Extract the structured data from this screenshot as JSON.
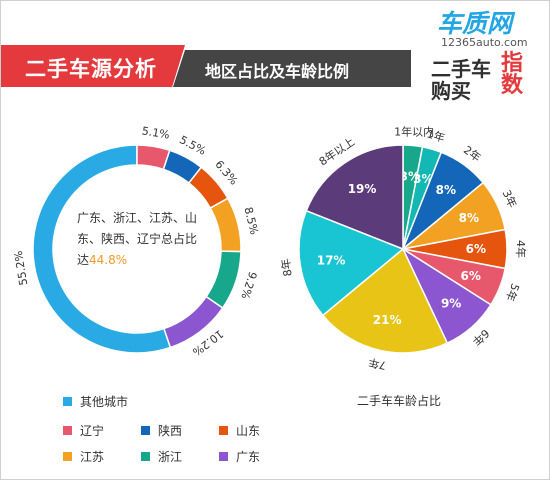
{
  "header": {
    "main_title": "二手车源分析",
    "sub_title": "地区占比及车龄比例",
    "logo_top": "车质网",
    "logo_url": "12365auto.com",
    "logo_line1": "二手车",
    "logo_line2": "购买",
    "logo_accent": "指数"
  },
  "donut": {
    "center_text_line1": "广东、浙江、江苏、山",
    "center_text_line2": "东、陕西、辽宁总占比",
    "center_text_line3_prefix": "达",
    "center_text_highlight": "44.8%",
    "highlight_color": "#f29a2a"
  },
  "pie_caption": "二手车车龄占比",
  "legend": [
    {
      "label": "其他城市",
      "color": "#2aaae4"
    },
    {
      "label": "辽宁",
      "color": "#e8586d"
    },
    {
      "label": "陕西",
      "color": "#1466b8"
    },
    {
      "label": "山东",
      "color": "#e5550e"
    },
    {
      "label": "江苏",
      "color": "#f3a122"
    },
    {
      "label": "浙江",
      "color": "#17a78a"
    },
    {
      "label": "广东",
      "color": "#8b56cf"
    }
  ],
  "chart_data": [
    {
      "type": "pie",
      "title": "地区占比",
      "donut": true,
      "categories": [
        "其他城市",
        "辽宁",
        "陕西",
        "山东",
        "江苏",
        "浙江",
        "广东"
      ],
      "values": [
        55.2,
        5.1,
        5.5,
        6.3,
        8.5,
        9.2,
        10.2
      ],
      "labels": [
        "55.2%",
        "5.1%",
        "5.5%",
        "6.3%",
        "8.5%",
        "9.2%",
        "10.2%"
      ],
      "colors": [
        "#2aaae4",
        "#e8586d",
        "#1466b8",
        "#e5550e",
        "#f3a122",
        "#17a78a",
        "#8b56cf"
      ]
    },
    {
      "type": "pie",
      "title": "二手车车龄占比",
      "categories": [
        "1年以内",
        "1年",
        "2年",
        "3年",
        "4年",
        "5年",
        "6年",
        "7年",
        "8年",
        "8年以上"
      ],
      "values": [
        3,
        3,
        8,
        8,
        6,
        6,
        9,
        21,
        17,
        19
      ],
      "labels": [
        "3%",
        "3%",
        "8%",
        "8%",
        "6%",
        "6%",
        "9%",
        "21%",
        "17%",
        "19%"
      ],
      "colors": [
        "#17a78a",
        "#13b8b5",
        "#1466b8",
        "#f3a122",
        "#e5550e",
        "#e8586d",
        "#8b56cf",
        "#e8c417",
        "#19c5d2",
        "#5b3b7a"
      ]
    }
  ]
}
